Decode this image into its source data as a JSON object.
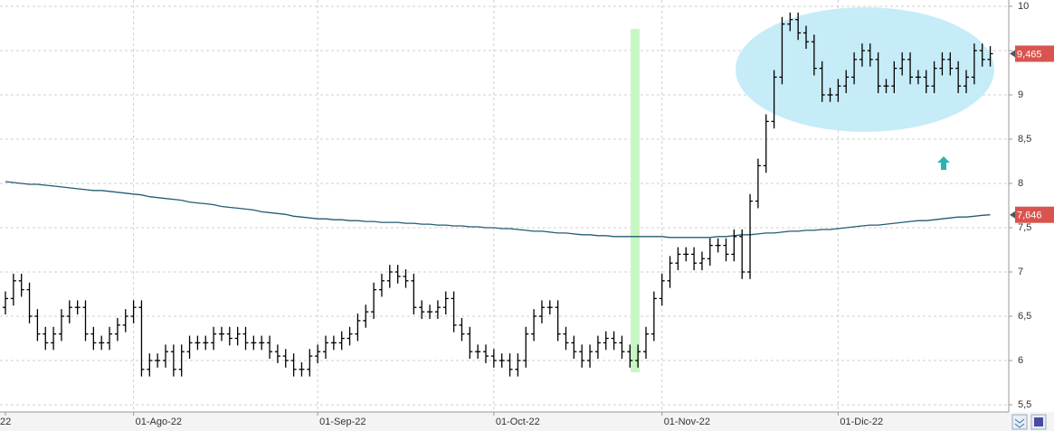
{
  "chart_data": {
    "type": "ohlc",
    "categories": [
      "22",
      null,
      null,
      null,
      null,
      null,
      null,
      null,
      null,
      null,
      null,
      null,
      null,
      null,
      null,
      null,
      "01-Ago-22",
      null,
      null,
      null,
      null,
      null,
      null,
      null,
      null,
      null,
      null,
      null,
      null,
      null,
      null,
      null,
      null,
      null,
      null,
      null,
      null,
      null,
      null,
      "01-Sep-22",
      null,
      null,
      null,
      null,
      null,
      null,
      null,
      null,
      null,
      null,
      null,
      null,
      null,
      null,
      null,
      null,
      null,
      null,
      null,
      null,
      null,
      "01-Oct-22",
      null,
      null,
      null,
      null,
      null,
      null,
      null,
      null,
      null,
      null,
      null,
      null,
      null,
      null,
      null,
      null,
      null,
      null,
      null,
      null,
      "01-Nov-22",
      null,
      null,
      null,
      null,
      null,
      null,
      null,
      null,
      null,
      null,
      null,
      null,
      null,
      null,
      null,
      null,
      null,
      null,
      null,
      null,
      null,
      "01-Dic-22",
      null,
      null,
      null,
      null,
      null,
      null,
      null,
      null,
      null,
      null,
      null,
      null,
      null,
      null,
      null,
      null,
      null,
      null,
      null
    ],
    "bar_color": "#000000",
    "ohlc": [
      [
        6.6,
        6.78,
        6.52,
        6.7
      ],
      [
        6.7,
        6.98,
        6.62,
        6.9
      ],
      [
        6.9,
        6.98,
        6.72,
        6.8
      ],
      [
        6.8,
        6.88,
        6.42,
        6.5
      ],
      [
        6.5,
        6.58,
        6.22,
        6.3
      ],
      [
        6.3,
        6.38,
        6.12,
        6.2
      ],
      [
        6.2,
        6.38,
        6.12,
        6.3
      ],
      [
        6.3,
        6.58,
        6.22,
        6.5
      ],
      [
        6.5,
        6.68,
        6.42,
        6.6
      ],
      [
        6.6,
        6.68,
        6.52,
        6.6
      ],
      [
        6.6,
        6.68,
        6.22,
        6.3
      ],
      [
        6.3,
        6.38,
        6.12,
        6.2
      ],
      [
        6.2,
        6.28,
        6.12,
        6.2
      ],
      [
        6.2,
        6.38,
        6.12,
        6.3
      ],
      [
        6.3,
        6.48,
        6.22,
        6.4
      ],
      [
        6.4,
        6.58,
        6.32,
        6.5
      ],
      [
        6.5,
        6.68,
        6.42,
        6.6
      ],
      [
        6.6,
        6.68,
        5.82,
        5.9
      ],
      [
        5.9,
        6.08,
        5.82,
        6.0
      ],
      [
        6.0,
        6.08,
        5.92,
        6.0
      ],
      [
        6.0,
        6.18,
        5.92,
        6.1
      ],
      [
        6.1,
        6.18,
        5.82,
        5.9
      ],
      [
        5.9,
        6.18,
        5.82,
        6.1
      ],
      [
        6.1,
        6.28,
        6.02,
        6.2
      ],
      [
        6.2,
        6.28,
        6.12,
        6.2
      ],
      [
        6.2,
        6.28,
        6.12,
        6.2
      ],
      [
        6.2,
        6.38,
        6.12,
        6.3
      ],
      [
        6.3,
        6.38,
        6.22,
        6.3
      ],
      [
        6.3,
        6.38,
        6.17,
        6.25
      ],
      [
        6.25,
        6.38,
        6.17,
        6.3
      ],
      [
        6.3,
        6.38,
        6.12,
        6.2
      ],
      [
        6.2,
        6.28,
        6.12,
        6.2
      ],
      [
        6.2,
        6.28,
        6.12,
        6.2
      ],
      [
        6.2,
        6.28,
        6.02,
        6.1
      ],
      [
        6.1,
        6.18,
        5.97,
        6.05
      ],
      [
        6.05,
        6.13,
        5.92,
        6.0
      ],
      [
        6.0,
        6.08,
        5.82,
        5.9
      ],
      [
        5.9,
        5.98,
        5.82,
        5.9
      ],
      [
        5.9,
        6.13,
        5.82,
        6.05
      ],
      [
        6.05,
        6.18,
        5.97,
        6.1
      ],
      [
        6.1,
        6.28,
        6.02,
        6.2
      ],
      [
        6.2,
        6.28,
        6.12,
        6.2
      ],
      [
        6.2,
        6.33,
        6.12,
        6.25
      ],
      [
        6.25,
        6.38,
        6.17,
        6.3
      ],
      [
        6.3,
        6.53,
        6.22,
        6.45
      ],
      [
        6.45,
        6.63,
        6.37,
        6.55
      ],
      [
        6.55,
        6.88,
        6.47,
        6.8
      ],
      [
        6.8,
        6.98,
        6.72,
        6.9
      ],
      [
        6.9,
        7.08,
        6.82,
        7.0
      ],
      [
        7.0,
        7.08,
        6.87,
        6.95
      ],
      [
        6.95,
        7.03,
        6.82,
        6.9
      ],
      [
        6.9,
        6.98,
        6.52,
        6.6
      ],
      [
        6.6,
        6.68,
        6.47,
        6.55
      ],
      [
        6.55,
        6.63,
        6.47,
        6.55
      ],
      [
        6.55,
        6.68,
        6.47,
        6.6
      ],
      [
        6.6,
        6.78,
        6.52,
        6.7
      ],
      [
        6.7,
        6.78,
        6.32,
        6.4
      ],
      [
        6.4,
        6.48,
        6.22,
        6.3
      ],
      [
        6.3,
        6.38,
        6.02,
        6.1
      ],
      [
        6.1,
        6.18,
        6.02,
        6.1
      ],
      [
        6.1,
        6.18,
        5.97,
        6.05
      ],
      [
        6.05,
        6.13,
        5.92,
        6.0
      ],
      [
        6.0,
        6.08,
        5.92,
        6.0
      ],
      [
        6.0,
        6.08,
        5.82,
        5.9
      ],
      [
        5.9,
        6.08,
        5.82,
        6.0
      ],
      [
        6.0,
        6.38,
        5.92,
        6.3
      ],
      [
        6.3,
        6.58,
        6.22,
        6.5
      ],
      [
        6.5,
        6.68,
        6.42,
        6.6
      ],
      [
        6.6,
        6.68,
        6.52,
        6.6
      ],
      [
        6.6,
        6.68,
        6.22,
        6.3
      ],
      [
        6.3,
        6.38,
        6.12,
        6.2
      ],
      [
        6.2,
        6.28,
        6.02,
        6.1
      ],
      [
        6.1,
        6.18,
        5.92,
        6.0
      ],
      [
        6.0,
        6.18,
        5.92,
        6.1
      ],
      [
        6.1,
        6.28,
        6.02,
        6.2
      ],
      [
        6.2,
        6.33,
        6.12,
        6.25
      ],
      [
        6.25,
        6.33,
        6.12,
        6.2
      ],
      [
        6.2,
        6.28,
        6.02,
        6.1
      ],
      [
        6.1,
        6.18,
        5.92,
        6.0
      ],
      [
        6.0,
        6.18,
        5.92,
        6.1
      ],
      [
        6.1,
        6.38,
        6.02,
        6.3
      ],
      [
        6.3,
        6.78,
        6.22,
        6.7
      ],
      [
        6.7,
        6.98,
        6.62,
        6.9
      ],
      [
        6.9,
        7.18,
        6.82,
        7.1
      ],
      [
        7.1,
        7.28,
        7.02,
        7.2
      ],
      [
        7.2,
        7.28,
        7.12,
        7.2
      ],
      [
        7.2,
        7.28,
        7.02,
        7.1
      ],
      [
        7.1,
        7.23,
        7.02,
        7.15
      ],
      [
        7.15,
        7.38,
        7.07,
        7.3
      ],
      [
        7.3,
        7.38,
        7.22,
        7.3
      ],
      [
        7.3,
        7.38,
        7.12,
        7.2
      ],
      [
        7.2,
        7.48,
        7.12,
        7.4
      ],
      [
        7.4,
        7.48,
        6.92,
        7.0
      ],
      [
        7.0,
        7.88,
        6.92,
        7.8
      ],
      [
        7.8,
        8.28,
        7.72,
        8.2
      ],
      [
        8.2,
        8.78,
        8.12,
        8.7
      ],
      [
        8.7,
        9.28,
        8.62,
        9.2
      ],
      [
        9.2,
        9.88,
        9.12,
        9.8
      ],
      [
        9.8,
        9.93,
        9.72,
        9.85
      ],
      [
        9.85,
        9.93,
        9.62,
        9.7
      ],
      [
        9.7,
        9.78,
        9.52,
        9.6
      ],
      [
        9.6,
        9.68,
        9.22,
        9.3
      ],
      [
        9.3,
        9.38,
        8.92,
        9.0
      ],
      [
        9.0,
        9.08,
        8.92,
        9.0
      ],
      [
        9.0,
        9.18,
        8.92,
        9.1
      ],
      [
        9.1,
        9.28,
        9.02,
        9.2
      ],
      [
        9.2,
        9.48,
        9.12,
        9.4
      ],
      [
        9.4,
        9.58,
        9.32,
        9.5
      ],
      [
        9.5,
        9.58,
        9.32,
        9.4
      ],
      [
        9.4,
        9.48,
        9.02,
        9.1
      ],
      [
        9.1,
        9.18,
        9.02,
        9.1
      ],
      [
        9.1,
        9.38,
        9.02,
        9.3
      ],
      [
        9.3,
        9.48,
        9.22,
        9.4
      ],
      [
        9.4,
        9.48,
        9.12,
        9.2
      ],
      [
        9.2,
        9.28,
        9.12,
        9.2
      ],
      [
        9.2,
        9.28,
        9.02,
        9.1
      ],
      [
        9.1,
        9.38,
        9.02,
        9.3
      ],
      [
        9.3,
        9.48,
        9.22,
        9.4
      ],
      [
        9.4,
        9.48,
        9.22,
        9.3
      ],
      [
        9.3,
        9.38,
        9.02,
        9.1
      ],
      [
        9.1,
        9.28,
        9.02,
        9.2
      ],
      [
        9.2,
        9.58,
        9.12,
        9.5
      ],
      [
        9.5,
        9.58,
        9.32,
        9.4
      ],
      [
        9.4,
        9.55,
        9.32,
        9.465
      ]
    ],
    "line": {
      "color": "#245b73",
      "values": [
        8.02,
        8.01,
        8.0,
        7.99,
        7.99,
        7.98,
        7.97,
        7.96,
        7.95,
        7.94,
        7.93,
        7.92,
        7.92,
        7.91,
        7.9,
        7.89,
        7.88,
        7.87,
        7.85,
        7.84,
        7.83,
        7.82,
        7.81,
        7.79,
        7.78,
        7.77,
        7.76,
        7.74,
        7.73,
        7.72,
        7.71,
        7.7,
        7.68,
        7.67,
        7.66,
        7.65,
        7.63,
        7.62,
        7.61,
        7.6,
        7.6,
        7.59,
        7.59,
        7.58,
        7.58,
        7.57,
        7.57,
        7.56,
        7.56,
        7.56,
        7.55,
        7.55,
        7.54,
        7.54,
        7.53,
        7.53,
        7.52,
        7.52,
        7.51,
        7.51,
        7.5,
        7.5,
        7.49,
        7.49,
        7.48,
        7.47,
        7.46,
        7.46,
        7.45,
        7.44,
        7.44,
        7.43,
        7.42,
        7.42,
        7.41,
        7.41,
        7.4,
        7.4,
        7.4,
        7.4,
        7.4,
        7.4,
        7.4,
        7.39,
        7.39,
        7.39,
        7.39,
        7.39,
        7.39,
        7.4,
        7.4,
        7.41,
        7.42,
        7.42,
        7.43,
        7.44,
        7.44,
        7.45,
        7.46,
        7.46,
        7.47,
        7.47,
        7.48,
        7.48,
        7.49,
        7.5,
        7.51,
        7.52,
        7.53,
        7.53,
        7.54,
        7.55,
        7.56,
        7.57,
        7.58,
        7.58,
        7.59,
        7.6,
        7.61,
        7.62,
        7.62,
        7.63,
        7.64,
        7.646
      ]
    },
    "price_tags": [
      {
        "value": 9.465,
        "label": "9,465"
      },
      {
        "value": 7.646,
        "label": "7,646"
      }
    ],
    "tag_color": "#d9534f",
    "ylim": [
      5.5,
      10
    ],
    "yticks": [
      {
        "value": 5.5,
        "label": "5,5"
      },
      6,
      {
        "value": 6.5,
        "label": "6,5"
      },
      7,
      {
        "value": 7.5,
        "label": "7,5"
      },
      8,
      {
        "value": 8.5,
        "label": "8,5"
      },
      9,
      {
        "value": 9.5,
        "label": "9,5"
      },
      10
    ],
    "grid": true
  }
}
